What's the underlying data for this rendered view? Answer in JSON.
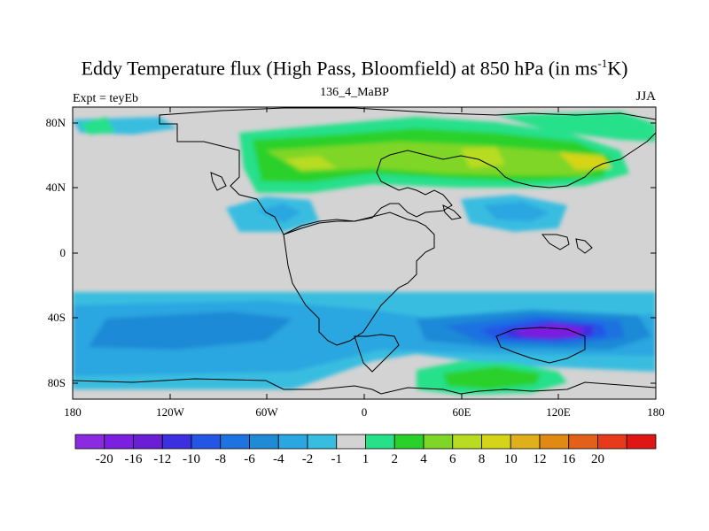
{
  "title": {
    "main": "Eddy Temperature flux (High Pass, Bloomfield) at 850 hPa (in ms",
    "sup": "-1",
    "end": "K)"
  },
  "subtitle": "136_4_MaBP",
  "left_label": "Expt = teyEb",
  "right_label": "JJA",
  "map": {
    "lat_ticks": [
      "80N",
      "40N",
      "0",
      "40S",
      "80S"
    ],
    "lon_ticks": [
      "180",
      "120W",
      "60W",
      "0",
      "60E",
      "120E",
      "180"
    ]
  },
  "colorbar": {
    "colors": [
      "#8a2be2",
      "#7b1fe0",
      "#6a1fd6",
      "#3c2fe0",
      "#2456e6",
      "#1f73e0",
      "#1f8ad6",
      "#2aa6e0",
      "#37bde0",
      "#d3d3d3",
      "#26e08a",
      "#2bd12b",
      "#7fd627",
      "#b8dc22",
      "#d6d419",
      "#e0b01a",
      "#e08a14",
      "#e2601a",
      "#e63a1a",
      "#e01616"
    ],
    "labels": [
      "-20",
      "-16",
      "-12",
      "-10",
      "-8",
      "-6",
      "-4",
      "-2",
      "-1",
      "1",
      "2",
      "4",
      "6",
      "8",
      "10",
      "12",
      "16",
      "20"
    ]
  }
}
